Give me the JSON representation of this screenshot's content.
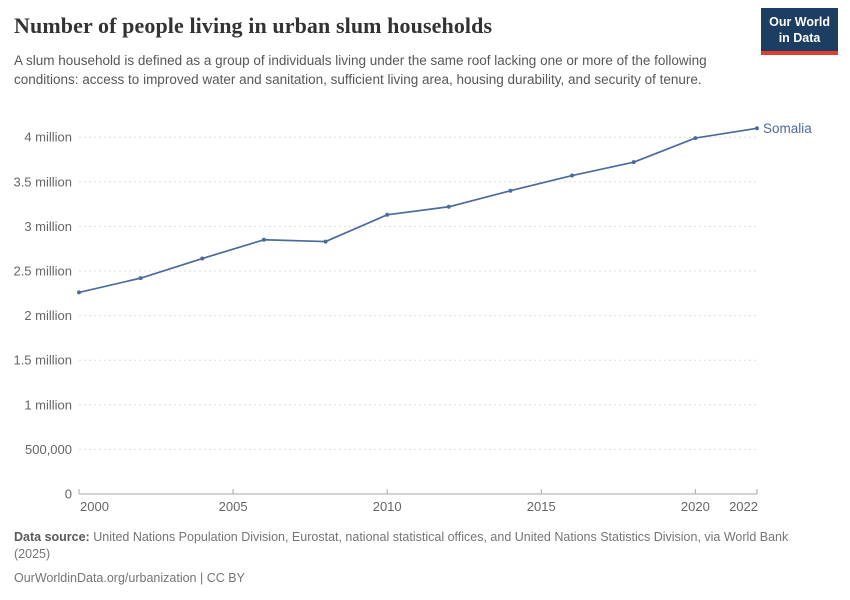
{
  "header": {
    "logo": {
      "line1": "Our World",
      "line2": "in Data"
    }
  },
  "chart_data": {
    "type": "line",
    "title": "Number of people living in urban slum households",
    "subtitle": "A slum household is defined as a group of individuals living under the same roof lacking one or more of the following conditions: access to improved water and sanitation, sufficient living area, housing durability, and security of tenure.",
    "x": [
      2000,
      2002,
      2004,
      2006,
      2008,
      2010,
      2012,
      2014,
      2016,
      2018,
      2020,
      2022
    ],
    "series": [
      {
        "name": "Somalia",
        "color": "#4C6A9C",
        "values": [
          2260000,
          2420000,
          2640000,
          2850000,
          2830000,
          3130000,
          3220000,
          3400000,
          3570000,
          3720000,
          3990000,
          4100000
        ]
      }
    ],
    "xlabel": "",
    "ylabel": "",
    "xlim": [
      2000,
      2022
    ],
    "ylim": [
      0,
      4200000
    ],
    "x_ticks": [
      2000,
      2005,
      2010,
      2015,
      2020,
      2022
    ],
    "y_ticks": [
      {
        "value": 4000000,
        "label": "4 million"
      },
      {
        "value": 3500000,
        "label": "3.5 million"
      },
      {
        "value": 3000000,
        "label": "3 million"
      },
      {
        "value": 2500000,
        "label": "2.5 million"
      },
      {
        "value": 2000000,
        "label": "2 million"
      },
      {
        "value": 1500000,
        "label": "1.5 million"
      },
      {
        "value": 1000000,
        "label": "1 million"
      },
      {
        "value": 500000,
        "label": "500,000"
      },
      {
        "value": 0,
        "label": "0"
      }
    ],
    "grid": "horizontal-dashed",
    "legend": "end-of-line-label"
  },
  "colors": {
    "line": "#4C6A9C",
    "grid": "#dedede",
    "axis": "#a9a9a9",
    "tick_label": "#666666",
    "logo_bg": "#1d3d63",
    "logo_stripe": "#dc3f34"
  },
  "footer": {
    "source_label": "Data source:",
    "source_text": "United Nations Population Division, Eurostat, national statistical offices, and United Nations Statistics Division, via World Bank (2025)",
    "attribution": "OurWorldinData.org/urbanization | CC BY"
  }
}
